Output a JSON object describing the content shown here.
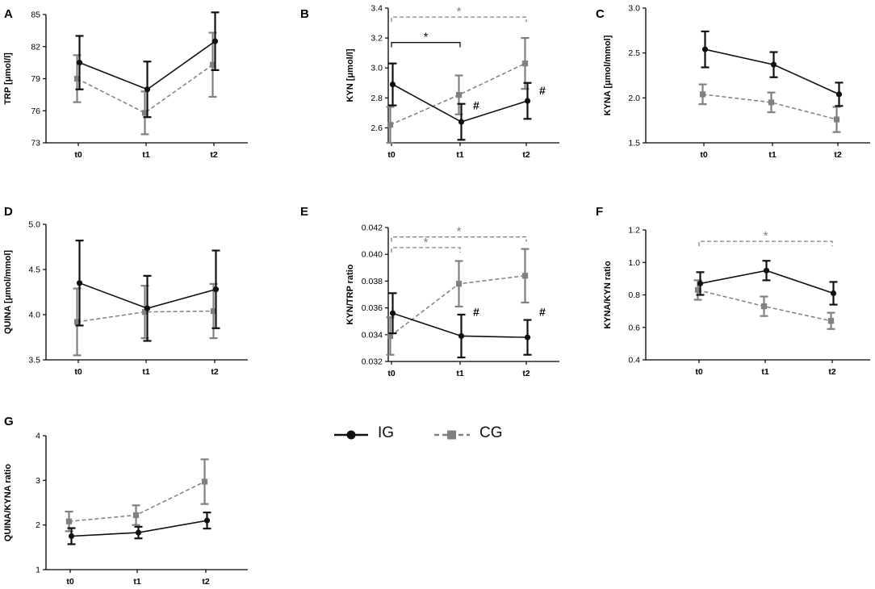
{
  "chart_data": [
    {
      "type": "line",
      "panel_label": "A",
      "ylabel": "TRP [μmol/l]",
      "categories": [
        "t0",
        "t1",
        "t2"
      ],
      "ylim": [
        73,
        85
      ],
      "yticks": [
        73,
        76,
        79,
        82,
        85
      ],
      "series": [
        {
          "name": "IG",
          "values": [
            80.5,
            78.0,
            82.5
          ],
          "err": [
            2.5,
            2.6,
            2.7
          ]
        },
        {
          "name": "CG",
          "values": [
            79.0,
            75.8,
            80.3
          ],
          "err": [
            2.2,
            2.0,
            3.0
          ]
        }
      ],
      "annotations": []
    },
    {
      "type": "line",
      "panel_label": "B",
      "ylabel": "KYN [μmol/l]",
      "categories": [
        "t0",
        "t1",
        "t2"
      ],
      "ylim": [
        2.5,
        3.4
      ],
      "yticks": [
        "2.6",
        "2.8",
        "3.0",
        "3.2",
        "3.4"
      ],
      "series": [
        {
          "name": "IG",
          "values": [
            2.89,
            2.64,
            2.78
          ],
          "err": [
            0.14,
            0.12,
            0.12
          ]
        },
        {
          "name": "CG",
          "values": [
            2.62,
            2.82,
            3.03
          ],
          "err": [
            0.12,
            0.13,
            0.17
          ]
        }
      ],
      "annotations": [
        {
          "type": "bracket",
          "series": "IG",
          "from": 0,
          "to": 1,
          "y": 3.17,
          "text": "*"
        },
        {
          "type": "bracket",
          "series": "CG",
          "from": 0,
          "to": 2,
          "y": 3.34,
          "text": "*"
        },
        {
          "type": "hash",
          "at": 1,
          "y": 2.75,
          "text": "#"
        },
        {
          "type": "hash",
          "at": 2,
          "y": 2.85,
          "text": "#"
        }
      ]
    },
    {
      "type": "line",
      "panel_label": "C",
      "ylabel": "KYNA [μmol/mmol]",
      "categories": [
        "t0",
        "t1",
        "t2"
      ],
      "ylim": [
        1.5,
        3.0
      ],
      "yticks": [
        "1.5",
        "2.0",
        "2.5",
        "3.0"
      ],
      "series": [
        {
          "name": "IG",
          "values": [
            2.54,
            2.37,
            2.04
          ],
          "err": [
            0.2,
            0.14,
            0.13
          ]
        },
        {
          "name": "CG",
          "values": [
            2.04,
            1.95,
            1.76
          ],
          "err": [
            0.11,
            0.11,
            0.14
          ]
        }
      ],
      "annotations": []
    },
    {
      "type": "line",
      "panel_label": "D",
      "ylabel": "QUINA [μmol/mmol]",
      "categories": [
        "t0",
        "t1",
        "t2"
      ],
      "ylim": [
        3.5,
        5.0
      ],
      "yticks": [
        "3.5",
        "4.0",
        "4.5",
        "5.0"
      ],
      "series": [
        {
          "name": "IG",
          "values": [
            4.35,
            4.07,
            4.28
          ],
          "err": [
            0.47,
            0.36,
            0.43
          ]
        },
        {
          "name": "CG",
          "values": [
            3.92,
            4.03,
            4.04
          ],
          "err": [
            0.37,
            0.29,
            0.3
          ]
        }
      ],
      "annotations": []
    },
    {
      "type": "line",
      "panel_label": "E",
      "ylabel": "KYN/TRP ratio",
      "categories": [
        "t0",
        "t1",
        "t2"
      ],
      "ylim": [
        0.032,
        0.042
      ],
      "yticks": [
        "0.032",
        "0.034",
        "0.036",
        "0.038",
        "0.040",
        "0.042"
      ],
      "series": [
        {
          "name": "IG",
          "values": [
            0.0356,
            0.0339,
            0.0338
          ],
          "err": [
            0.0015,
            0.0016,
            0.0013
          ]
        },
        {
          "name": "CG",
          "values": [
            0.0339,
            0.0378,
            0.0384
          ],
          "err": [
            0.0014,
            0.0017,
            0.002
          ]
        }
      ],
      "annotations": [
        {
          "type": "bracket",
          "series": "CG",
          "from": 0,
          "to": 1,
          "y": 0.0405,
          "text": "*"
        },
        {
          "type": "bracket",
          "series": "CG",
          "from": 0,
          "to": 2,
          "y": 0.0413,
          "text": "*"
        },
        {
          "type": "hash",
          "at": 1,
          "y": 0.0357,
          "text": "#"
        },
        {
          "type": "hash",
          "at": 2,
          "y": 0.0357,
          "text": "#"
        }
      ]
    },
    {
      "type": "line",
      "panel_label": "F",
      "ylabel": "KYNA/KYN ratio",
      "categories": [
        "t0",
        "t1",
        "t2"
      ],
      "ylim": [
        0.4,
        1.2
      ],
      "yticks": [
        "0.4",
        "0.6",
        "0.8",
        "1.0",
        "1.2"
      ],
      "series": [
        {
          "name": "IG",
          "values": [
            0.87,
            0.95,
            0.81
          ],
          "err": [
            0.07,
            0.06,
            0.07
          ]
        },
        {
          "name": "CG",
          "values": [
            0.83,
            0.73,
            0.64
          ],
          "err": [
            0.06,
            0.06,
            0.05
          ]
        }
      ],
      "annotations": [
        {
          "type": "bracket",
          "series": "CG",
          "from": 0,
          "to": 2,
          "y": 1.13,
          "text": "*"
        }
      ]
    },
    {
      "type": "line",
      "panel_label": "G",
      "ylabel": "QUINA/KYNA ratio",
      "categories": [
        "t0",
        "t1",
        "t2"
      ],
      "ylim": [
        1,
        4
      ],
      "yticks": [
        "1",
        "2",
        "3",
        "4"
      ],
      "series": [
        {
          "name": "IG",
          "values": [
            1.75,
            1.83,
            2.1
          ],
          "err": [
            0.18,
            0.13,
            0.18
          ]
        },
        {
          "name": "CG",
          "values": [
            2.08,
            2.22,
            2.97
          ],
          "err": [
            0.22,
            0.22,
            0.5
          ]
        }
      ],
      "annotations": []
    }
  ],
  "legend": {
    "items": [
      {
        "name": "IG",
        "label": "IG"
      },
      {
        "name": "CG",
        "label": "CG"
      }
    ]
  },
  "colors": {
    "IG": "#111111",
    "CG": "#808080",
    "axis": "#000000"
  }
}
